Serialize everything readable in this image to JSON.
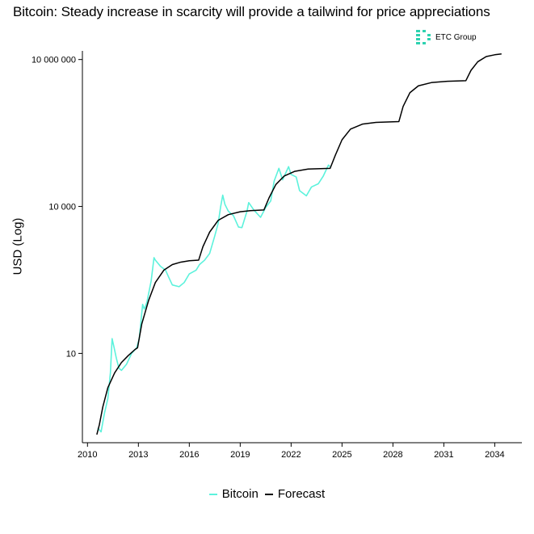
{
  "chart_data": {
    "type": "line",
    "title": "Bitcoin: Steady increase in scarcity will provide a tailwind for price appreciations",
    "xlabel": "",
    "ylabel": "USD (Log)",
    "y_scale": "log",
    "xlim": [
      2009.7,
      2035.6
    ],
    "ylim": [
      0.15,
      15000000
    ],
    "x_ticks": [
      2010,
      2013,
      2016,
      2019,
      2022,
      2025,
      2028,
      2031,
      2034
    ],
    "x_tick_labels": [
      "2010",
      "2013",
      "2016",
      "2019",
      "2022",
      "2025",
      "2028",
      "2031",
      "2034"
    ],
    "y_ticks": [
      10,
      10000,
      10000000
    ],
    "y_tick_labels": [
      "10",
      "10 000",
      "10 000 000"
    ],
    "grid": false,
    "legend_position": "bottom",
    "series": [
      {
        "name": "Bitcoin",
        "color": "#5cf2dc",
        "points": [
          [
            2010.6,
            0.3
          ],
          [
            2010.8,
            0.25
          ],
          [
            2011.0,
            0.6
          ],
          [
            2011.2,
            1.2
          ],
          [
            2011.35,
            4
          ],
          [
            2011.45,
            20
          ],
          [
            2011.55,
            14
          ],
          [
            2011.7,
            8
          ],
          [
            2011.85,
            5
          ],
          [
            2012.0,
            4.5
          ],
          [
            2012.3,
            6
          ],
          [
            2012.6,
            10
          ],
          [
            2012.9,
            13
          ],
          [
            2013.05,
            20
          ],
          [
            2013.25,
            100
          ],
          [
            2013.35,
            80
          ],
          [
            2013.5,
            110
          ],
          [
            2013.75,
            300
          ],
          [
            2013.92,
            900
          ],
          [
            2014.0,
            800
          ],
          [
            2014.3,
            600
          ],
          [
            2014.6,
            500
          ],
          [
            2014.8,
            350
          ],
          [
            2015.0,
            250
          ],
          [
            2015.4,
            230
          ],
          [
            2015.7,
            280
          ],
          [
            2016.0,
            420
          ],
          [
            2016.4,
            500
          ],
          [
            2016.6,
            650
          ],
          [
            2016.9,
            800
          ],
          [
            2017.2,
            1100
          ],
          [
            2017.5,
            2500
          ],
          [
            2017.7,
            4500
          ],
          [
            2017.85,
            10000
          ],
          [
            2017.97,
            17000
          ],
          [
            2018.1,
            11000
          ],
          [
            2018.3,
            8000
          ],
          [
            2018.6,
            6500
          ],
          [
            2018.9,
            3800
          ],
          [
            2019.1,
            3700
          ],
          [
            2019.4,
            8000
          ],
          [
            2019.5,
            12000
          ],
          [
            2019.8,
            8500
          ],
          [
            2020.2,
            6000
          ],
          [
            2020.5,
            9500
          ],
          [
            2020.8,
            13000
          ],
          [
            2021.0,
            33000
          ],
          [
            2021.28,
            60000
          ],
          [
            2021.5,
            35000
          ],
          [
            2021.85,
            65000
          ],
          [
            2022.0,
            45000
          ],
          [
            2022.3,
            40000
          ],
          [
            2022.5,
            21000
          ],
          [
            2022.9,
            16500
          ],
          [
            2023.2,
            25000
          ],
          [
            2023.6,
            29000
          ],
          [
            2023.9,
            42000
          ],
          [
            2024.2,
            70000
          ],
          [
            2024.3,
            65000
          ]
        ]
      },
      {
        "name": "Forecast",
        "color": "#000000",
        "points": [
          [
            2010.55,
            0.22
          ],
          [
            2010.7,
            0.35
          ],
          [
            2010.9,
            0.8
          ],
          [
            2011.2,
            2
          ],
          [
            2011.6,
            4
          ],
          [
            2012.0,
            6.5
          ],
          [
            2012.4,
            9
          ],
          [
            2012.8,
            12
          ],
          [
            2012.95,
            13
          ],
          [
            2013.2,
            40
          ],
          [
            2013.6,
            120
          ],
          [
            2014.0,
            280
          ],
          [
            2014.5,
            500
          ],
          [
            2015.0,
            650
          ],
          [
            2015.5,
            730
          ],
          [
            2016.0,
            780
          ],
          [
            2016.55,
            800
          ],
          [
            2016.8,
            1500
          ],
          [
            2017.2,
            3000
          ],
          [
            2017.7,
            5200
          ],
          [
            2018.3,
            6800
          ],
          [
            2019.0,
            7800
          ],
          [
            2019.6,
            8200
          ],
          [
            2020.4,
            8500
          ],
          [
            2020.7,
            15000
          ],
          [
            2021.1,
            28000
          ],
          [
            2021.6,
            42000
          ],
          [
            2022.2,
            52000
          ],
          [
            2023.0,
            58000
          ],
          [
            2024.3,
            60000
          ],
          [
            2024.6,
            110000
          ],
          [
            2025.0,
            230000
          ],
          [
            2025.5,
            380000
          ],
          [
            2026.2,
            480000
          ],
          [
            2027.0,
            520000
          ],
          [
            2028.35,
            540000
          ],
          [
            2028.6,
            1100000
          ],
          [
            2029.0,
            2100000
          ],
          [
            2029.5,
            2900000
          ],
          [
            2030.3,
            3400000
          ],
          [
            2031.2,
            3600000
          ],
          [
            2032.3,
            3700000
          ],
          [
            2032.6,
            6000000
          ],
          [
            2033.0,
            9000000
          ],
          [
            2033.5,
            11500000
          ],
          [
            2034.0,
            12500000
          ],
          [
            2034.4,
            13000000
          ]
        ]
      }
    ]
  },
  "logo": {
    "text": "ETC Group",
    "color": "#2ed2b0"
  }
}
